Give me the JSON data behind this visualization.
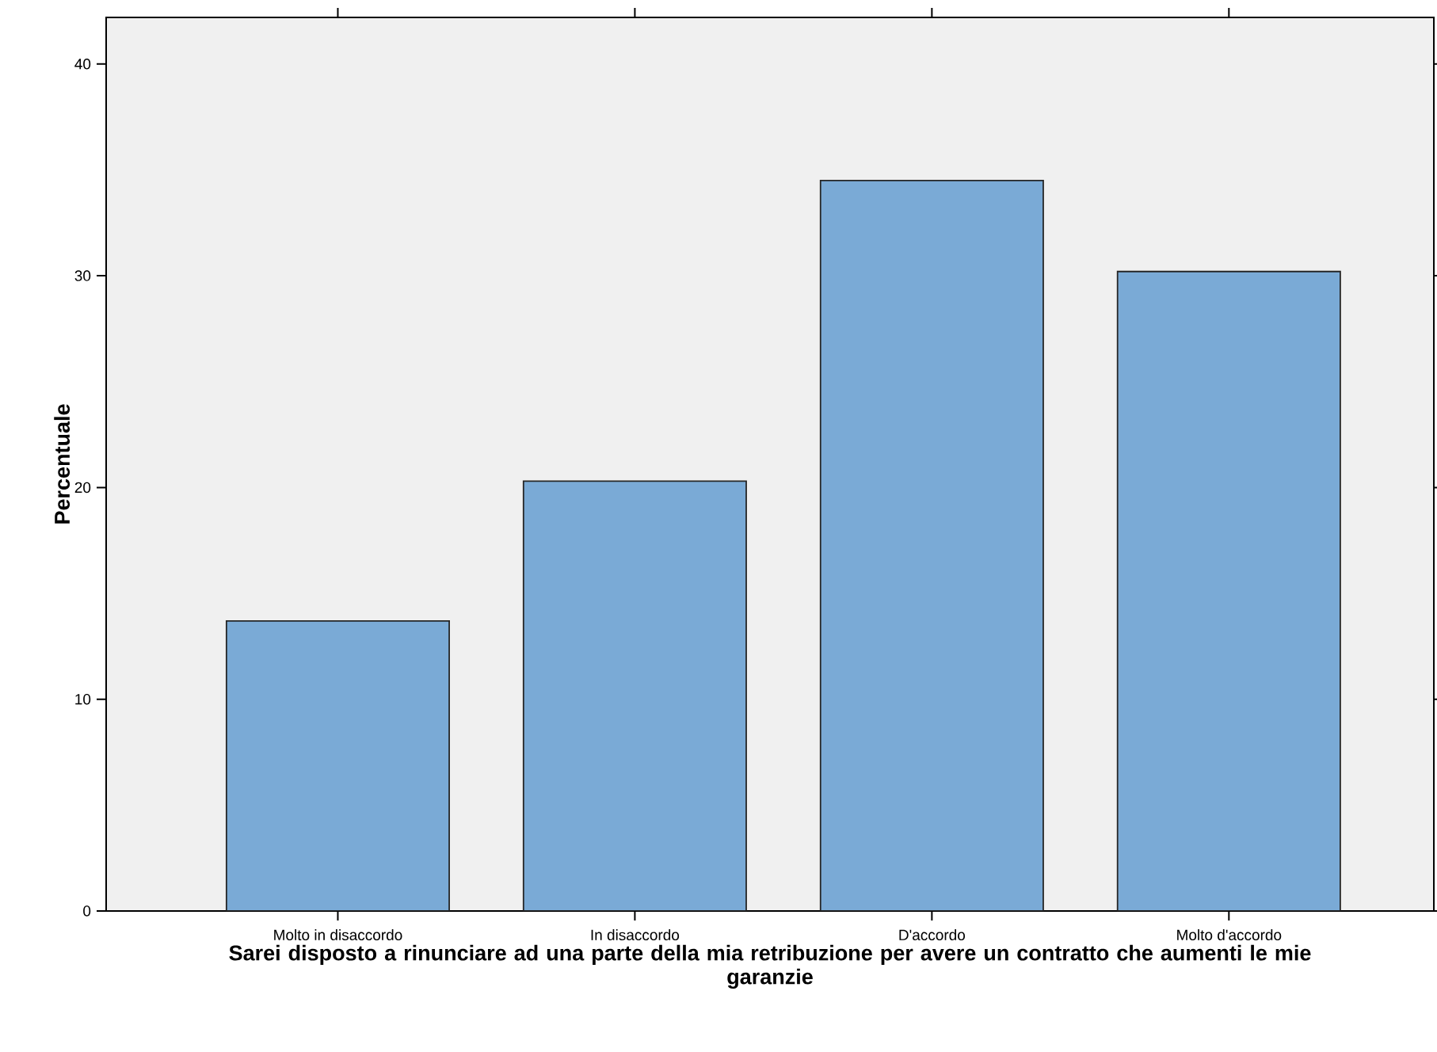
{
  "chart_data": {
    "type": "bar",
    "xlabel": "Sarei disposto a rinunciare ad una parte della mia retribuzione per avere un contratto che aumenti le mie garanzie",
    "ylabel": "Percentuale",
    "categories": [
      "Molto in disaccordo",
      "In disaccordo",
      "D'accordo",
      "Molto d'accordo"
    ],
    "values": [
      13.7,
      20.3,
      34.5,
      30.2
    ],
    "color": "#7aaad6",
    "ylim": [
      0,
      42.2
    ],
    "yticks": [
      0,
      10,
      20,
      30,
      40
    ],
    "grid": false
  }
}
